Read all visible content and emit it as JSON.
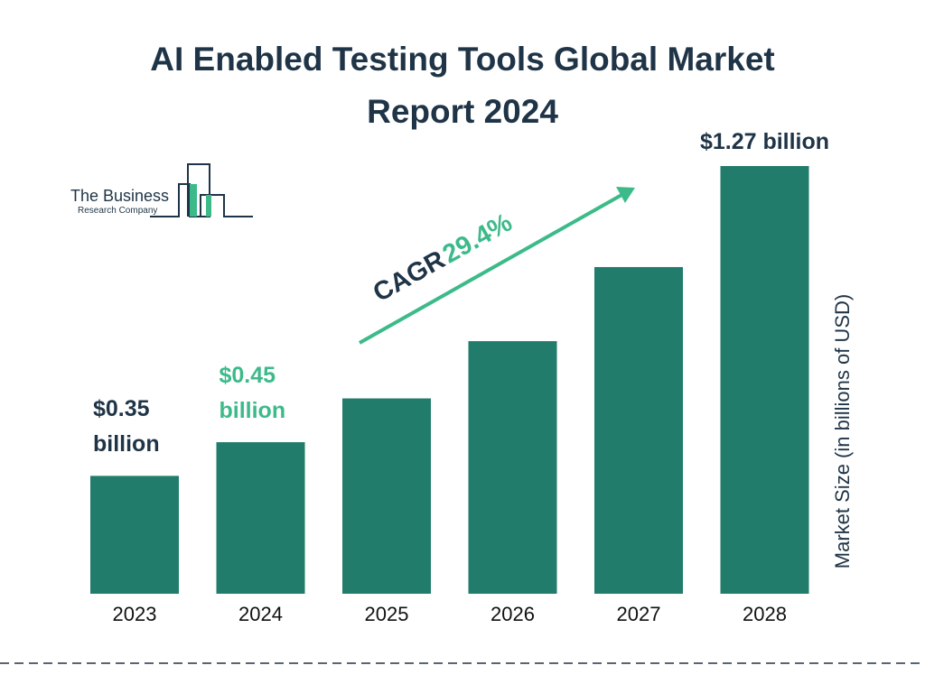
{
  "chart_data": {
    "type": "bar",
    "title": "AI Enabled Testing Tools Global Market Report 2024",
    "categories": [
      "2023",
      "2024",
      "2025",
      "2026",
      "2027",
      "2028"
    ],
    "values": [
      0.35,
      0.45,
      0.58,
      0.75,
      0.97,
      1.27
    ],
    "value_labels": [
      "$0.35 billion",
      "$0.45 billion",
      null,
      null,
      null,
      "$1.27 billion"
    ],
    "value_label_colors": [
      "#1f3447",
      "#3dba8a",
      null,
      null,
      null,
      "#1f3447"
    ],
    "color": "#217c6b",
    "y_label": "Market Size (in billions of USD)",
    "annotation": {
      "label": "CAGR",
      "value": "29.4%"
    },
    "logo": {
      "line1": "The Business",
      "line2": "Research Company"
    }
  }
}
